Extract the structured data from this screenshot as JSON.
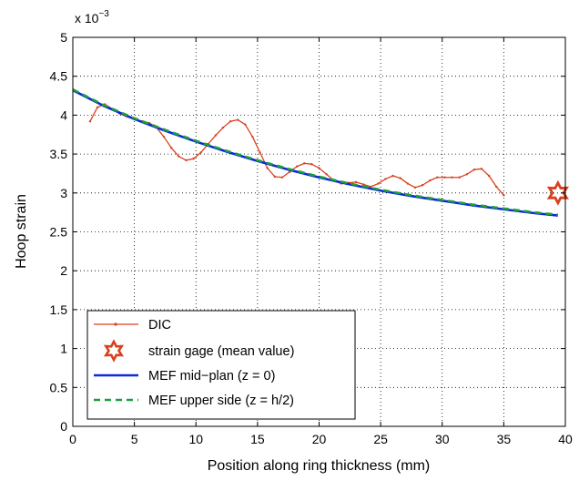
{
  "chart_data": {
    "type": "line",
    "xlabel": "Position along ring thickness (mm)",
    "ylabel": "Hoop strain",
    "multiplier": {
      "base": "x 10",
      "exponent": "−3"
    },
    "xlim": [
      0,
      40
    ],
    "ylim": [
      0,
      5
    ],
    "xticks": [
      0,
      5,
      10,
      15,
      20,
      25,
      30,
      35,
      40
    ],
    "yticks": [
      0,
      0.5,
      1,
      1.5,
      2,
      2.5,
      3,
      3.5,
      4,
      4.5,
      5
    ],
    "grid": true,
    "legend_position": "bottom-left",
    "series": [
      {
        "name": "DIC",
        "color": "#d9411e",
        "style": "line-dot",
        "x": [
          1.4,
          2.0,
          2.6,
          3.2,
          3.8,
          4.4,
          5.0,
          5.6,
          6.2,
          6.8,
          7.4,
          8.0,
          8.6,
          9.2,
          9.8,
          10.4,
          11.0,
          11.6,
          12.2,
          12.8,
          13.4,
          14.0,
          14.6,
          15.2,
          15.8,
          16.4,
          17.0,
          17.6,
          18.2,
          18.8,
          19.4,
          20.0,
          20.6,
          21.2,
          21.8,
          22.4,
          23.0,
          23.6,
          24.2,
          24.8,
          25.4,
          26.0,
          26.6,
          27.2,
          27.8,
          28.4,
          29.0,
          29.6,
          30.2,
          30.8,
          31.4,
          32.0,
          32.6,
          33.2,
          33.8,
          34.4,
          35.0
        ],
        "y": [
          3.92,
          4.1,
          4.14,
          4.08,
          4.02,
          3.98,
          3.95,
          3.92,
          3.9,
          3.84,
          3.72,
          3.58,
          3.47,
          3.42,
          3.44,
          3.52,
          3.63,
          3.74,
          3.84,
          3.92,
          3.94,
          3.88,
          3.72,
          3.52,
          3.32,
          3.21,
          3.2,
          3.27,
          3.34,
          3.38,
          3.37,
          3.32,
          3.24,
          3.16,
          3.12,
          3.13,
          3.14,
          3.11,
          3.08,
          3.12,
          3.18,
          3.22,
          3.19,
          3.12,
          3.07,
          3.1,
          3.16,
          3.2,
          3.2,
          3.2,
          3.2,
          3.24,
          3.3,
          3.31,
          3.22,
          3.08,
          2.97
        ]
      },
      {
        "name": "strain gage (mean value)",
        "color": "#d9411e",
        "style": "star-marker",
        "x": [
          39.4
        ],
        "y": [
          3.0
        ]
      },
      {
        "name": "MEF mid−plan (z = 0)",
        "color": "#0a2bd6",
        "style": "solid",
        "x": [
          0,
          2.5,
          5,
          7.5,
          10,
          12.5,
          15,
          17.5,
          20,
          22.5,
          25,
          27.5,
          30,
          32.5,
          35,
          37.5,
          39.4
        ],
        "y": [
          4.32,
          4.12,
          3.95,
          3.8,
          3.66,
          3.53,
          3.41,
          3.3,
          3.2,
          3.11,
          3.03,
          2.96,
          2.9,
          2.84,
          2.79,
          2.74,
          2.71
        ]
      },
      {
        "name": "MEF upper side (z = h/2)",
        "color": "#1f9e3a",
        "style": "dashed",
        "x": [
          0,
          2.5,
          5,
          7.5,
          10,
          12.5,
          15,
          17.5,
          20,
          22.5,
          25,
          27.5,
          30,
          32.5,
          35,
          37.5,
          39.4
        ],
        "y": [
          4.33,
          4.13,
          3.96,
          3.81,
          3.67,
          3.54,
          3.42,
          3.31,
          3.21,
          3.12,
          3.04,
          2.97,
          2.91,
          2.85,
          2.8,
          2.75,
          2.72
        ]
      }
    ]
  }
}
